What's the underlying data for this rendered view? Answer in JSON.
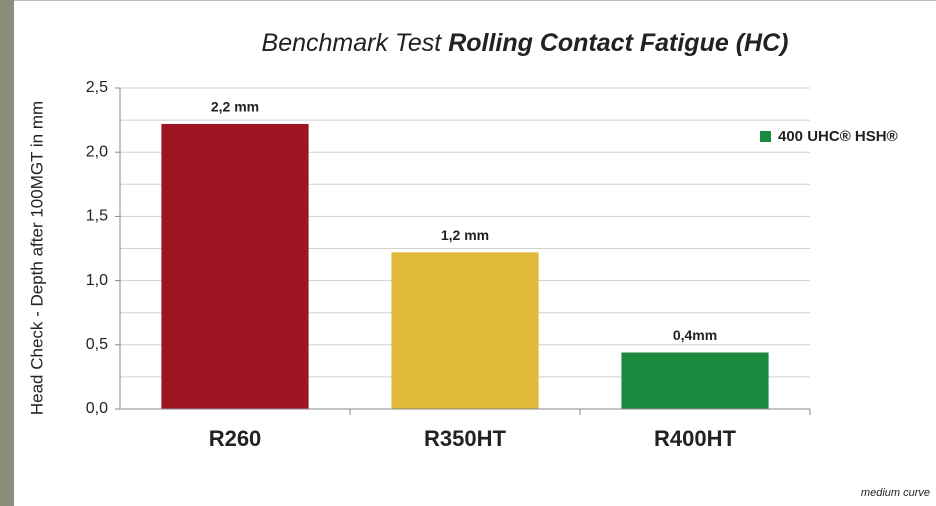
{
  "chart_data": {
    "type": "bar",
    "title": "Benchmark Test",
    "title_emphasis": "Rolling Contact Fatigue (HC)",
    "y_label": "Head Check - Depth after  100MGT  in mm",
    "categories": [
      "R260",
      "R350HT",
      "R400HT"
    ],
    "values": [
      2.22,
      1.22,
      0.44
    ],
    "value_labels": [
      "2,2 mm",
      "1,2 mm",
      "0,4mm"
    ],
    "colors": [
      "#9c1520",
      "#e1ba3b",
      "#1b8a3f"
    ],
    "ylim": [
      0,
      2.5
    ],
    "yticks": [
      {
        "value": 0,
        "label": "0,0"
      },
      {
        "value": 0.5,
        "label": "0,5"
      },
      {
        "value": 1,
        "label": "1,0"
      },
      {
        "value": 1.5,
        "label": "1,5"
      },
      {
        "value": 2,
        "label": "2,0"
      },
      {
        "value": 2.5,
        "label": "2,5"
      }
    ],
    "minor_yticks": [
      0.25,
      0.75,
      1.25,
      1.75,
      2.25
    ],
    "grid": true,
    "legend": {
      "label": "400 UHC® HSH®",
      "color": "#1b8a3f",
      "position": "right"
    },
    "footnote": "medium curve"
  }
}
